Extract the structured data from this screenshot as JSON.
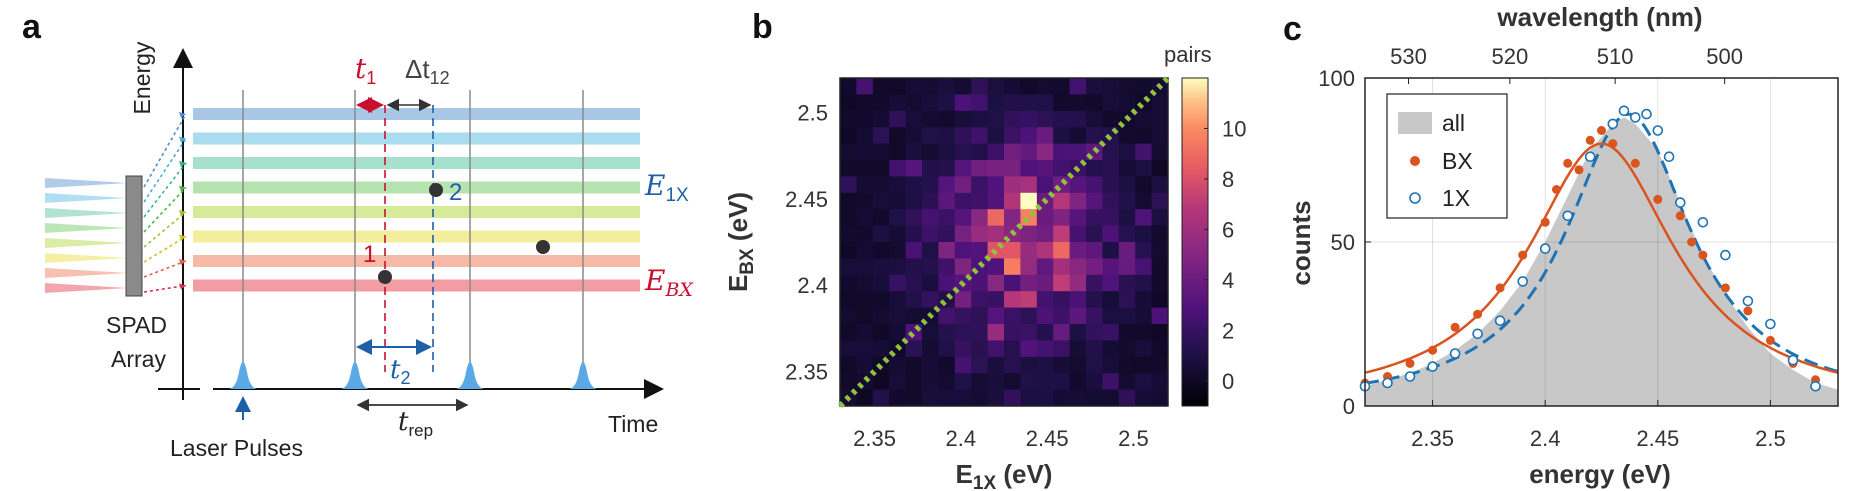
{
  "panel_labels": {
    "a": "a",
    "b": "b",
    "c": "c"
  },
  "panel_a": {
    "energy_label": "Energy",
    "time_label": "Time",
    "spad_label_1": "SPAD",
    "spad_label_2": "Array",
    "laser_label": "Laser Pulses",
    "t1": "t",
    "t1_sub": "1",
    "dt12": "Δt",
    "dt12_sub": "12",
    "t2": "t",
    "t2_sub": "2",
    "trep": "t",
    "trep_sub": "rep",
    "e1x": "E",
    "e1x_sub": "1X",
    "ebx": "E",
    "ebx_sub": "BX",
    "photon_1": "1",
    "photon_2": "2",
    "band_colors": [
      "#a8c6e6",
      "#a9dcef",
      "#a7e0cd",
      "#b5e3b0",
      "#d7ea9a",
      "#f2ee9c",
      "#f6b9a8",
      "#f29ca4"
    ],
    "colors": {
      "red": "#c8102e",
      "blue": "#1f5fa6",
      "pulse": "#5aa9e6"
    }
  },
  "chart_data": [
    {
      "type": "heatmap",
      "title": "",
      "xlabel": "E",
      "xlabel_sub": "1X",
      "xlabel_unit": " (eV)",
      "ylabel": "E",
      "ylabel_sub": "BX",
      "ylabel_unit": " (eV)",
      "xlim": [
        2.33,
        2.52
      ],
      "ylim": [
        2.33,
        2.52
      ],
      "xticks": [
        "2.35",
        "2.4",
        "2.45",
        "2.5"
      ],
      "yticks": [
        "2.35",
        "2.4",
        "2.45",
        "2.5"
      ],
      "colorbar_label": "pairs",
      "colorbar_ticks": [
        "0",
        "2",
        "4",
        "6",
        "8",
        "10"
      ],
      "colorbar_range": [
        -1,
        12
      ],
      "grid_size": 20,
      "center": [
        2.435,
        2.425
      ],
      "peak": 12,
      "diagonal_color": "#8fc23e"
    },
    {
      "type": "scatter",
      "title": "",
      "xlabel": "energy (eV)",
      "ylabel": "counts",
      "top_xlabel": "wavelength (nm)",
      "xlim": [
        2.32,
        2.53
      ],
      "ylim": [
        0,
        100
      ],
      "xticks": [
        "2.35",
        "2.4",
        "2.45",
        "2.5"
      ],
      "yticks": [
        "0",
        "50",
        "100"
      ],
      "top_xticks": [
        "530",
        "520",
        "510",
        "500"
      ],
      "legend": [
        "all",
        "BX",
        "1X"
      ],
      "legend_position": "top-left",
      "colors": {
        "all": "#c8c8c8",
        "BX": "#d9541e",
        "1X": "#1e73b4"
      },
      "series": [
        {
          "name": "all",
          "x": [
            2.32,
            2.33,
            2.34,
            2.35,
            2.36,
            2.37,
            2.38,
            2.39,
            2.4,
            2.41,
            2.42,
            2.43,
            2.435,
            2.44,
            2.45,
            2.46,
            2.47,
            2.48,
            2.49,
            2.5,
            2.51,
            2.52,
            2.53
          ],
          "y": [
            6,
            8,
            10,
            13,
            17,
            22,
            29,
            38,
            50,
            64,
            78,
            86,
            88,
            86,
            78,
            62,
            46,
            34,
            24,
            16,
            11,
            7,
            5
          ]
        },
        {
          "name": "BX",
          "x": [
            2.32,
            2.33,
            2.34,
            2.35,
            2.36,
            2.37,
            2.38,
            2.39,
            2.4,
            2.405,
            2.41,
            2.415,
            2.42,
            2.425,
            2.43,
            2.44,
            2.45,
            2.46,
            2.465,
            2.47,
            2.48,
            2.49,
            2.5,
            2.51,
            2.52
          ],
          "y": [
            7,
            9,
            13,
            17,
            24,
            28,
            36,
            46,
            56,
            66,
            74,
            72,
            81,
            84,
            80,
            74,
            63,
            58,
            50,
            46,
            36,
            29,
            20,
            13,
            8
          ]
        },
        {
          "name": "1X",
          "x": [
            2.32,
            2.33,
            2.34,
            2.35,
            2.36,
            2.37,
            2.38,
            2.39,
            2.4,
            2.41,
            2.42,
            2.43,
            2.435,
            2.44,
            2.445,
            2.45,
            2.455,
            2.46,
            2.47,
            2.48,
            2.49,
            2.5,
            2.51,
            2.52
          ],
          "y": [
            6,
            7,
            9,
            12,
            16,
            22,
            26,
            38,
            48,
            58,
            76,
            86,
            90,
            88,
            89,
            84,
            76,
            62,
            56,
            46,
            32,
            25,
            14,
            6
          ]
        },
        {
          "name": "BX fit",
          "peak_x": 2.425,
          "peak_y": 80,
          "width": 0.04
        },
        {
          "name": "1X fit",
          "peak_x": 2.437,
          "peak_y": 89,
          "width": 0.034
        }
      ]
    }
  ]
}
